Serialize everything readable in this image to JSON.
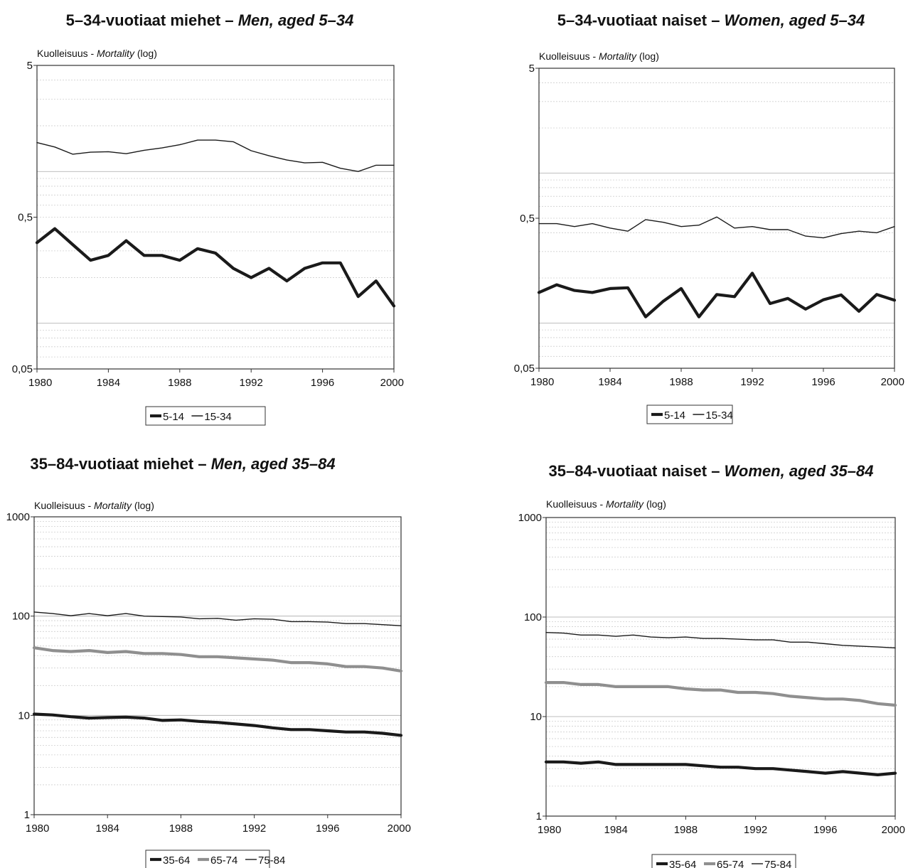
{
  "chart_data": [
    {
      "type": "line",
      "title": "5–34-vuotiaat miehet",
      "title_en": "Men, aged 5–34",
      "ylabel": "Kuolleisuus - ",
      "ylabel_en": "Mortality",
      "ylabel_suffix": " (log)",
      "yscale": "log",
      "ylim": [
        0.05,
        5
      ],
      "yticks": [
        0.05,
        0.5,
        5
      ],
      "ytick_labels": [
        "0,05",
        "0,5",
        "5"
      ],
      "xlim": [
        1980,
        2000
      ],
      "xticks": [
        "1980",
        "1984",
        "1988",
        "1992",
        "1996",
        "2000"
      ],
      "grid": true,
      "legend": "bottom",
      "x": [
        1980,
        1981,
        1982,
        1983,
        1984,
        1985,
        1986,
        1987,
        1988,
        1989,
        1990,
        1991,
        1992,
        1993,
        1994,
        1995,
        1996,
        1997,
        1998,
        1999,
        2000
      ],
      "series": [
        {
          "name": "5-14",
          "values": [
            0.34,
            0.42,
            0.33,
            0.26,
            0.28,
            0.35,
            0.28,
            0.28,
            0.26,
            0.31,
            0.29,
            0.23,
            0.2,
            0.23,
            0.19,
            0.23,
            0.25,
            0.25,
            0.15,
            0.19,
            0.13
          ]
        },
        {
          "name": "15-34",
          "values": [
            1.55,
            1.45,
            1.3,
            1.34,
            1.35,
            1.31,
            1.38,
            1.43,
            1.5,
            1.61,
            1.61,
            1.57,
            1.37,
            1.27,
            1.19,
            1.14,
            1.15,
            1.05,
            1,
            1.1,
            1.1
          ]
        }
      ]
    },
    {
      "type": "line",
      "title": "5–34-vuotiaat naiset",
      "title_en": "Women, aged 5–34",
      "ylabel": "Kuolleisuus - ",
      "ylabel_en": "Mortality",
      "ylabel_suffix": " (log)",
      "yscale": "log",
      "ylim": [
        0.05,
        5
      ],
      "yticks": [
        0.05,
        0.5,
        5
      ],
      "ytick_labels": [
        "0,05",
        "0,5",
        "5"
      ],
      "xlim": [
        1980,
        2000
      ],
      "xticks": [
        "1980",
        "1984",
        "1988",
        "1992",
        "1996",
        "2000"
      ],
      "grid": true,
      "legend": "bottom",
      "x": [
        1980,
        1981,
        1982,
        1983,
        1984,
        1985,
        1986,
        1987,
        1988,
        1989,
        1990,
        1991,
        1992,
        1993,
        1994,
        1995,
        1996,
        1997,
        1998,
        1999,
        2000
      ],
      "series": [
        {
          "name": "5-14",
          "values": [
            0.16,
            0.18,
            0.165,
            0.16,
            0.17,
            0.172,
            0.11,
            0.14,
            0.17,
            0.11,
            0.155,
            0.15,
            0.215,
            0.135,
            0.146,
            0.124,
            0.143,
            0.154,
            0.12,
            0.155,
            0.142
          ]
        },
        {
          "name": "15-34",
          "values": [
            0.46,
            0.46,
            0.44,
            0.46,
            0.43,
            0.41,
            0.49,
            0.47,
            0.44,
            0.45,
            0.51,
            0.43,
            0.44,
            0.42,
            0.42,
            0.38,
            0.37,
            0.395,
            0.41,
            0.4,
            0.44
          ]
        }
      ]
    },
    {
      "type": "line",
      "title": "35–84-vuotiaat miehet",
      "title_en": "Men, aged 35–84",
      "ylabel": "Kuolleisuus - ",
      "ylabel_en": "Mortality",
      "ylabel_suffix": " (log)",
      "yscale": "log",
      "ylim": [
        1,
        1000
      ],
      "yticks": [
        1,
        10,
        100,
        1000
      ],
      "ytick_labels": [
        "1",
        "10",
        "100",
        "1000"
      ],
      "xlim": [
        1980,
        2000
      ],
      "xticks": [
        "1980",
        "1984",
        "1988",
        "1992",
        "1996",
        "2000"
      ],
      "grid": true,
      "legend": "bottom",
      "x": [
        1980,
        1981,
        1982,
        1983,
        1984,
        1985,
        1986,
        1987,
        1988,
        1989,
        1990,
        1991,
        1992,
        1993,
        1994,
        1995,
        1996,
        1997,
        1998,
        1999,
        2000
      ],
      "series": [
        {
          "name": "35-64",
          "values": [
            10.3,
            10.1,
            9.7,
            9.4,
            9.5,
            9.6,
            9.4,
            8.9,
            9,
            8.7,
            8.5,
            8.2,
            7.9,
            7.5,
            7.2,
            7.2,
            7,
            6.8,
            6.8,
            6.6,
            6.3
          ]
        },
        {
          "name": "65-74",
          "values": [
            48,
            45,
            44,
            45,
            43,
            44,
            42,
            42,
            41,
            39,
            39,
            38,
            37,
            36,
            34,
            34,
            33,
            31,
            31,
            30,
            28
          ]
        },
        {
          "name": "75-84",
          "values": [
            110,
            106,
            101,
            106,
            101,
            106,
            100,
            99,
            98,
            94,
            95,
            91,
            94,
            93,
            88,
            88,
            87,
            84,
            84,
            82,
            80
          ]
        }
      ]
    },
    {
      "type": "line",
      "title": "35–84-vuotiaat naiset",
      "title_en": "Women, aged 35–84",
      "ylabel": "Kuolleisuus - ",
      "ylabel_en": "Mortality",
      "ylabel_suffix": " (log)",
      "yscale": "log",
      "ylim": [
        1,
        1000
      ],
      "yticks": [
        1,
        10,
        100,
        1000
      ],
      "ytick_labels": [
        "1",
        "10",
        "100",
        "1000"
      ],
      "xlim": [
        1980,
        2000
      ],
      "xticks": [
        "1980",
        "1984",
        "1988",
        "1992",
        "1996",
        "2000"
      ],
      "grid": true,
      "legend": "bottom",
      "x": [
        1980,
        1981,
        1982,
        1983,
        1984,
        1985,
        1986,
        1987,
        1988,
        1989,
        1990,
        1991,
        1992,
        1993,
        1994,
        1995,
        1996,
        1997,
        1998,
        1999,
        2000
      ],
      "series": [
        {
          "name": "35-64",
          "values": [
            3.5,
            3.5,
            3.4,
            3.5,
            3.3,
            3.3,
            3.3,
            3.3,
            3.3,
            3.2,
            3.1,
            3.1,
            3,
            3,
            2.9,
            2.8,
            2.7,
            2.8,
            2.7,
            2.6,
            2.7
          ]
        },
        {
          "name": "65-74",
          "values": [
            22,
            22,
            21,
            21,
            20,
            20,
            20,
            20,
            19,
            18.5,
            18.5,
            17.5,
            17.5,
            17,
            16,
            15.5,
            15,
            15,
            14.5,
            13.5,
            13
          ]
        },
        {
          "name": "75-84",
          "values": [
            70,
            69,
            66,
            66,
            64,
            66,
            63,
            62,
            63,
            61,
            61,
            60,
            59,
            59,
            56,
            56,
            54,
            52,
            51,
            50,
            49
          ]
        }
      ]
    }
  ]
}
